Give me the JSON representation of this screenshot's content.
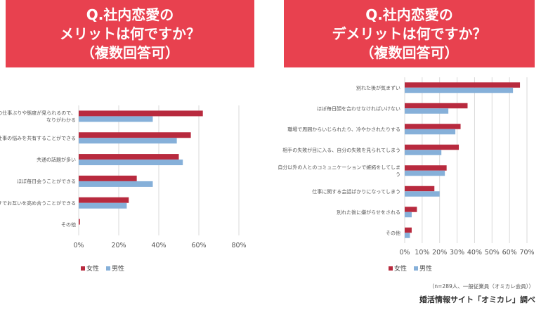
{
  "left_banner": {
    "line1": "Q.社内恋愛の",
    "line2": "メリットは何ですか？",
    "line3": "（複数回答可）"
  },
  "right_banner": {
    "line1": "Q.社内恋愛の",
    "line2": "デメリットは何ですか？",
    "line3": "（複数回答可）"
  },
  "footer": {
    "sample_note": "（n=289人、一般従業員（オミカレ会員））",
    "credit": "婚活情報サイト「オミカレ」調べ"
  },
  "colors": {
    "banner": "#e8414f",
    "female": "#b82a3e",
    "male": "#86b0d9",
    "grid": "#d9d9d9"
  },
  "chart_data": [
    {
      "type": "bar",
      "orientation": "horizontal",
      "title": "Q.社内恋愛の メリットは何ですか？（複数回答可）",
      "categories": [
        [
          "の仕事ぶりや態度が見られるので、",
          "なりがわかる"
        ],
        [
          "仕事の悩みを共有することができる"
        ],
        [
          "共通の話題が多い"
        ],
        [
          "ほぼ毎日会うことができる"
        ],
        [
          "すでお互いを高め合うことができる"
        ],
        [
          "その他"
        ]
      ],
      "series": [
        {
          "name": "女性",
          "values": [
            62,
            56,
            50,
            29,
            25,
            0.6
          ]
        },
        {
          "name": "男性",
          "values": [
            37,
            49,
            52,
            37,
            24,
            0
          ]
        }
      ],
      "x_ticks": [
        "0%",
        "20%",
        "40%",
        "60%",
        "80%"
      ],
      "xlim": [
        0,
        80
      ],
      "grid": true,
      "legend": "bottom-left"
    },
    {
      "type": "bar",
      "orientation": "horizontal",
      "title": "Q.社内恋愛の デメリットは何ですか？（複数回答可）",
      "categories": [
        [
          "別れた後が気まずい"
        ],
        [
          "ほぼ毎日顔を合わせなければいけない"
        ],
        [
          "職場で周囲からいじられたり、冷やかされたりする"
        ],
        [
          "相手の失敗が目に入る、自分の失敗を見られてしまう"
        ],
        [
          "自分以外の人とのコミュニケーションで嫉妬をしてしま",
          "う"
        ],
        [
          "仕事に関する会話ばかりになってしまう"
        ],
        [
          "別れた後に嫌がらせをされる"
        ],
        [
          "その他"
        ]
      ],
      "series": [
        {
          "name": "女性",
          "values": [
            66,
            36,
            32,
            31,
            24,
            17,
            7,
            4
          ]
        },
        {
          "name": "男性",
          "values": [
            62,
            25,
            29,
            21,
            23,
            20,
            4,
            3
          ]
        }
      ],
      "x_ticks": [
        "0%",
        "10%",
        "20%",
        "30%",
        "40%",
        "50%",
        "60%",
        "70%"
      ],
      "xlim": [
        0,
        70
      ],
      "grid": true,
      "legend": "bottom-left"
    }
  ]
}
